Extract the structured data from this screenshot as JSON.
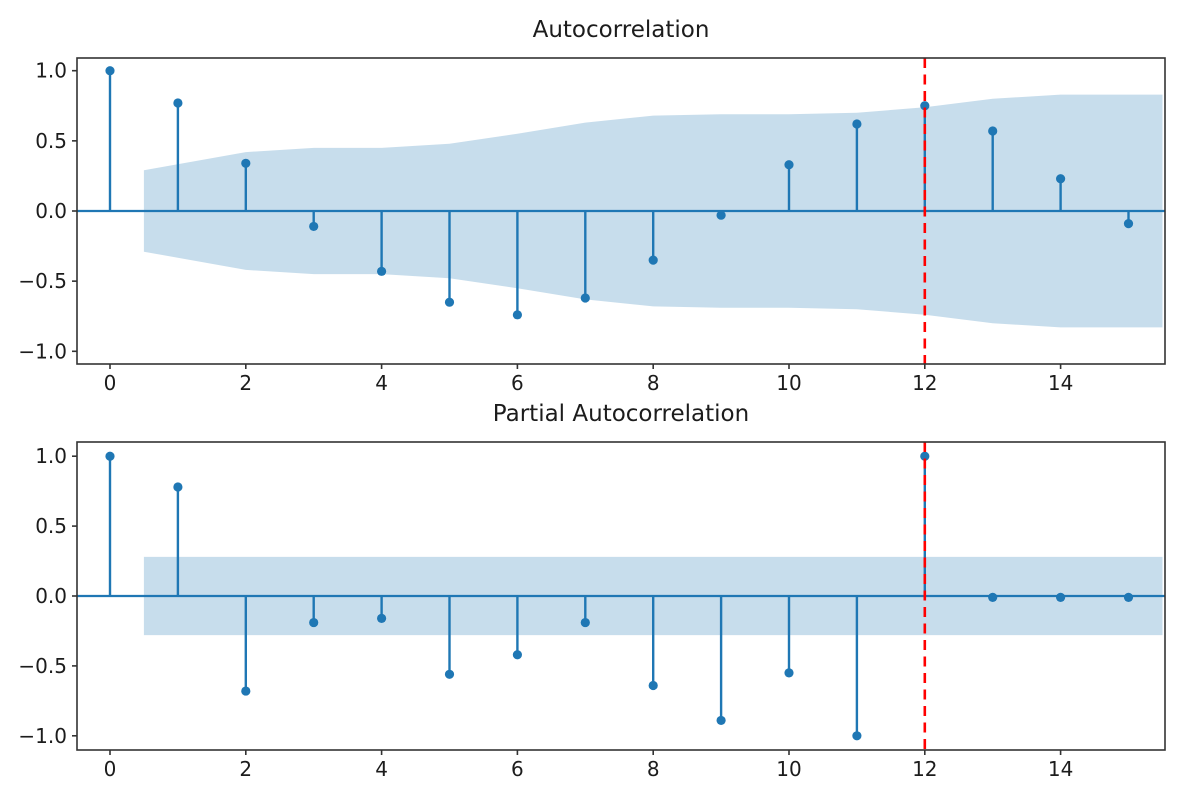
{
  "figure": {
    "background": "#ffffff",
    "text_color": "#1c1c1c",
    "spine_color": "#333333"
  },
  "chart_data": [
    {
      "type": "stem",
      "title": "Autocorrelation",
      "xlabel": "",
      "ylabel": "",
      "x": [
        0,
        1,
        2,
        3,
        4,
        5,
        6,
        7,
        8,
        9,
        10,
        11,
        12,
        13,
        14,
        15
      ],
      "values": [
        1.0,
        0.77,
        0.34,
        -0.11,
        -0.43,
        -0.65,
        -0.74,
        -0.62,
        -0.35,
        -0.03,
        0.33,
        0.62,
        0.75,
        0.57,
        0.23,
        -0.09
      ],
      "confidence_band": {
        "x": [
          0.5,
          2,
          3,
          4,
          5,
          6,
          7,
          8,
          9,
          10,
          11,
          12,
          13,
          14,
          15.5
        ],
        "upper": [
          0.29,
          0.42,
          0.45,
          0.45,
          0.48,
          0.55,
          0.63,
          0.68,
          0.69,
          0.69,
          0.7,
          0.74,
          0.8,
          0.83,
          0.83
        ],
        "lower": [
          -0.29,
          -0.42,
          -0.45,
          -0.45,
          -0.48,
          -0.55,
          -0.63,
          -0.68,
          -0.69,
          -0.69,
          -0.7,
          -0.74,
          -0.8,
          -0.83,
          -0.83
        ]
      },
      "vline": {
        "x": 12,
        "color": "#ff0000",
        "style": "dashed"
      },
      "xticks": {
        "values": [
          0,
          2,
          4,
          6,
          8,
          10,
          12,
          14
        ],
        "labels": [
          "0",
          "2",
          "4",
          "6",
          "8",
          "10",
          "12",
          "14"
        ]
      },
      "yticks": {
        "values": [
          1.0,
          0.5,
          0.0,
          -0.5,
          -1.0
        ],
        "labels": [
          "1.0",
          "0.5",
          "0.0",
          "−0.5",
          "−1.0"
        ]
      },
      "xlim": [
        -0.49,
        15.54
      ],
      "ylim": [
        -1.09,
        1.09
      ],
      "grid": false,
      "legend": null,
      "colors": {
        "stem": "#1f77b4",
        "marker": "#1f77b4",
        "baseline": "#1f77b4",
        "band": "#1f77b4",
        "band_alpha": 0.25
      }
    },
    {
      "type": "stem",
      "title": "Partial Autocorrelation",
      "xlabel": "",
      "ylabel": "",
      "x": [
        0,
        1,
        2,
        3,
        4,
        5,
        6,
        7,
        8,
        9,
        10,
        11,
        12,
        13,
        14,
        15
      ],
      "values": [
        1.0,
        0.78,
        -0.68,
        -0.19,
        -0.16,
        -0.56,
        -0.42,
        -0.19,
        -0.64,
        -0.89,
        -0.55,
        -1.0,
        1.0,
        -0.01,
        -0.01,
        -0.01
      ],
      "confidence_band": {
        "x": [
          0.5,
          15.5
        ],
        "upper": [
          0.28,
          0.28
        ],
        "lower": [
          -0.28,
          -0.28
        ]
      },
      "vline": {
        "x": 12,
        "color": "#ff0000",
        "style": "dashed"
      },
      "xticks": {
        "values": [
          0,
          2,
          4,
          6,
          8,
          10,
          12,
          14
        ],
        "labels": [
          "0",
          "2",
          "4",
          "6",
          "8",
          "10",
          "12",
          "14"
        ]
      },
      "yticks": {
        "values": [
          1.0,
          0.5,
          0.0,
          -0.5,
          -1.0
        ],
        "labels": [
          "1.0",
          "0.5",
          "0.0",
          "−0.5",
          "−1.0"
        ]
      },
      "xlim": [
        -0.49,
        15.54
      ],
      "ylim": [
        -1.1,
        1.1
      ],
      "grid": false,
      "legend": null,
      "colors": {
        "stem": "#1f77b4",
        "marker": "#1f77b4",
        "baseline": "#1f77b4",
        "band": "#1f77b4",
        "band_alpha": 0.25
      }
    }
  ]
}
